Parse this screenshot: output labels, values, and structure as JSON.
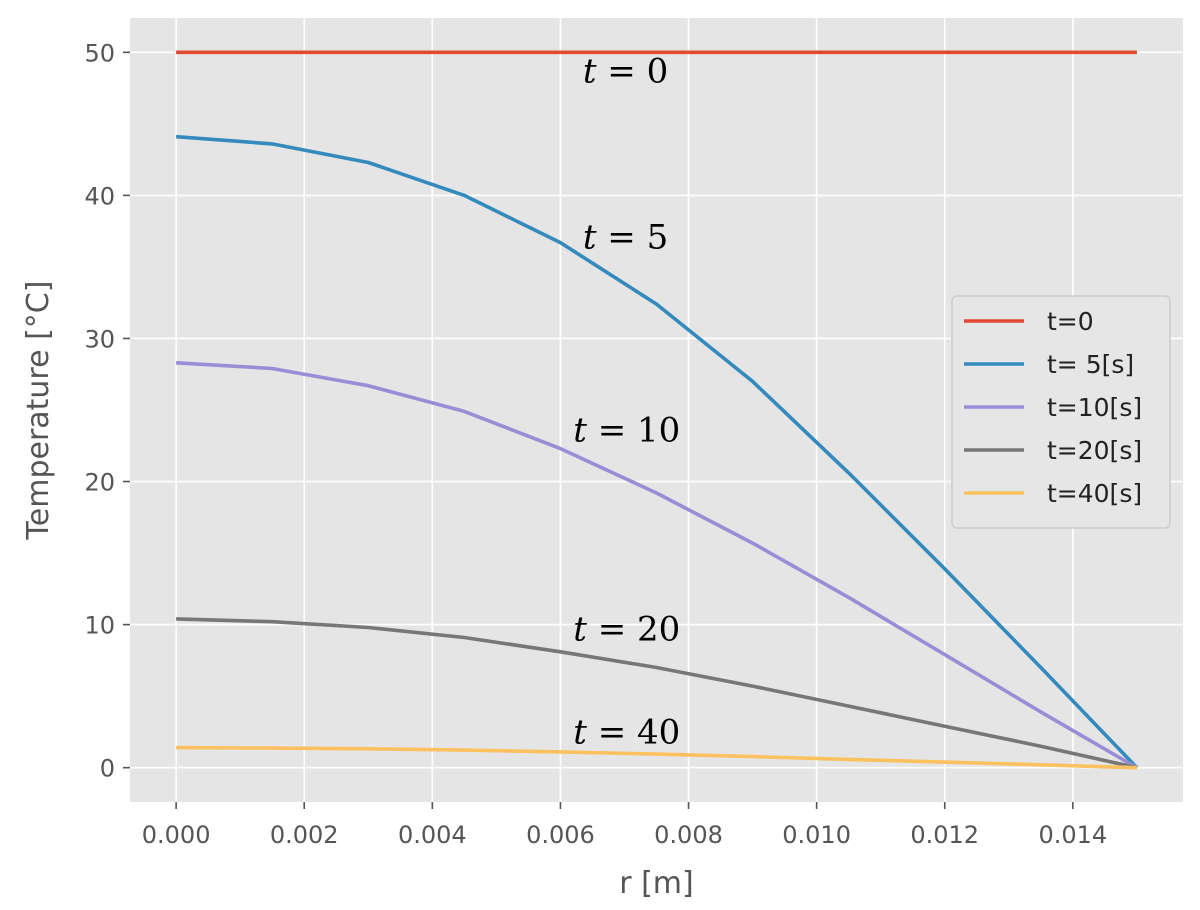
{
  "chart_data": {
    "type": "line",
    "xlabel": "r [m]",
    "ylabel": "Temperature [°C]",
    "xlim": [
      -0.00072,
      0.01572
    ],
    "ylim": [
      -2.4,
      52.4
    ],
    "x_ticks": [
      "0.000",
      "0.002",
      "0.004",
      "0.006",
      "0.008",
      "0.010",
      "0.012",
      "0.014"
    ],
    "y_ticks": [
      "0",
      "10",
      "20",
      "30",
      "40",
      "50"
    ],
    "grid": true,
    "legend_position": "center-right",
    "x": [
      0.0,
      0.0015,
      0.003,
      0.0045,
      0.006,
      0.0075,
      0.009,
      0.0105,
      0.012,
      0.0135,
      0.015
    ],
    "series": [
      {
        "name": "t=0",
        "color": "#E24A33",
        "values": [
          50,
          50,
          50,
          50,
          50,
          50,
          50,
          50,
          50,
          50,
          50
        ]
      },
      {
        "name": "t= 5[s]",
        "color": "#348ABD",
        "values": [
          44.1,
          43.6,
          42.3,
          40.0,
          36.7,
          32.4,
          27.0,
          20.6,
          13.9,
          7.0,
          0
        ]
      },
      {
        "name": "t=10[s]",
        "color": "#988ED5",
        "values": [
          28.3,
          27.9,
          26.7,
          24.9,
          22.3,
          19.2,
          15.7,
          11.9,
          7.9,
          3.9,
          0
        ]
      },
      {
        "name": "t=20[s]",
        "color": "#777777",
        "values": [
          10.4,
          10.2,
          9.8,
          9.1,
          8.1,
          7.0,
          5.7,
          4.3,
          2.9,
          1.5,
          0
        ]
      },
      {
        "name": "t=40[s]",
        "color": "#FBC15E",
        "values": [
          1.4,
          1.37,
          1.32,
          1.23,
          1.1,
          0.95,
          0.77,
          0.58,
          0.39,
          0.2,
          0
        ]
      }
    ],
    "annotations": [
      {
        "var": "t",
        "text": " = 0",
        "x": 0.00635,
        "y": 47.9
      },
      {
        "var": "t",
        "text": " = 5",
        "x": 0.00635,
        "y": 36.3
      },
      {
        "var": "t",
        "text": " = 10",
        "x": 0.0062,
        "y": 22.8
      },
      {
        "var": "t",
        "text": " = 20",
        "x": 0.0062,
        "y": 8.9
      },
      {
        "var": "t",
        "text": " = 40",
        "x": 0.0062,
        "y": 1.7
      }
    ]
  }
}
